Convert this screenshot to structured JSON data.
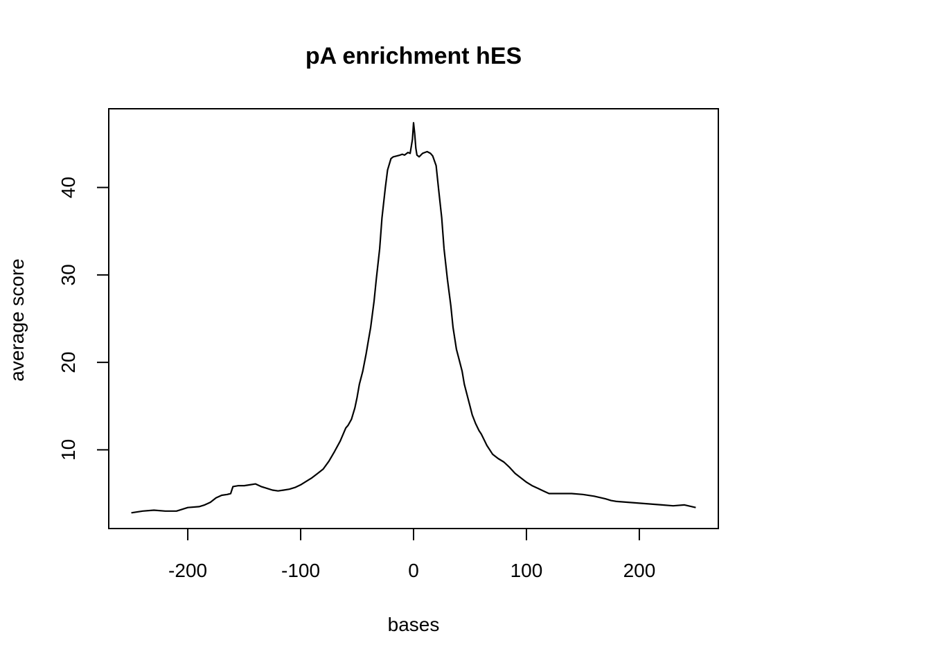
{
  "chart_data": {
    "type": "line",
    "title": "pA enrichment hES",
    "xlabel": "bases",
    "ylabel": "average score",
    "xlim": [
      -270,
      270
    ],
    "ylim": [
      1,
      49
    ],
    "x_ticks": [
      -200,
      -100,
      0,
      100,
      200
    ],
    "x_tick_labels": [
      "-200",
      "-100",
      "0",
      "100",
      "200"
    ],
    "y_ticks": [
      10,
      20,
      30,
      40
    ],
    "y_tick_labels": [
      "10",
      "20",
      "30",
      "40"
    ],
    "grid": false,
    "legend": "none",
    "series": [
      {
        "color": "#000000",
        "x": [
          -250,
          -240,
          -230,
          -220,
          -210,
          -200,
          -190,
          -185,
          -180,
          -175,
          -170,
          -165,
          -162,
          -160,
          -155,
          -150,
          -145,
          -140,
          -135,
          -130,
          -125,
          -120,
          -115,
          -110,
          -105,
          -100,
          -95,
          -90,
          -85,
          -80,
          -75,
          -70,
          -65,
          -60,
          -58,
          -55,
          -52,
          -50,
          -48,
          -45,
          -42,
          -40,
          -38,
          -35,
          -33,
          -30,
          -28,
          -25,
          -23,
          -20,
          -18,
          -15,
          -12,
          -10,
          -8,
          -5,
          -3,
          -1,
          0,
          1,
          2,
          3,
          5,
          8,
          10,
          12,
          15,
          17,
          20,
          22,
          25,
          27,
          30,
          33,
          35,
          38,
          40,
          43,
          45,
          48,
          50,
          52,
          55,
          58,
          60,
          65,
          70,
          75,
          80,
          85,
          90,
          95,
          100,
          105,
          110,
          115,
          120,
          125,
          130,
          140,
          150,
          160,
          170,
          175,
          180,
          190,
          200,
          210,
          220,
          230,
          240,
          250
        ],
        "y": [
          2.8,
          3.0,
          3.1,
          3.0,
          3.0,
          3.4,
          3.5,
          3.7,
          4.0,
          4.5,
          4.8,
          4.9,
          5.0,
          5.8,
          5.9,
          5.9,
          6.0,
          6.1,
          5.8,
          5.6,
          5.4,
          5.3,
          5.4,
          5.5,
          5.7,
          6.0,
          6.4,
          6.8,
          7.3,
          7.8,
          8.7,
          9.8,
          11.0,
          12.5,
          12.8,
          13.5,
          14.8,
          16.0,
          17.5,
          19.0,
          21.0,
          22.5,
          24.0,
          27.0,
          29.5,
          33.0,
          36.5,
          40.0,
          42.0,
          43.3,
          43.5,
          43.6,
          43.7,
          43.8,
          43.7,
          44.0,
          43.9,
          45.5,
          47.4,
          46.2,
          44.5,
          43.7,
          43.5,
          43.9,
          44.0,
          44.1,
          43.9,
          43.6,
          42.5,
          40.0,
          36.5,
          33.0,
          29.5,
          26.5,
          24.0,
          21.5,
          20.5,
          19.0,
          17.5,
          16.0,
          15.0,
          14.0,
          13.0,
          12.2,
          11.8,
          10.5,
          9.5,
          9.0,
          8.6,
          8.0,
          7.3,
          6.8,
          6.3,
          5.9,
          5.6,
          5.3,
          5.0,
          5.0,
          5.0,
          5.0,
          4.9,
          4.7,
          4.4,
          4.2,
          4.1,
          4.0,
          3.9,
          3.8,
          3.7,
          3.6,
          3.7,
          3.4
        ]
      }
    ]
  }
}
